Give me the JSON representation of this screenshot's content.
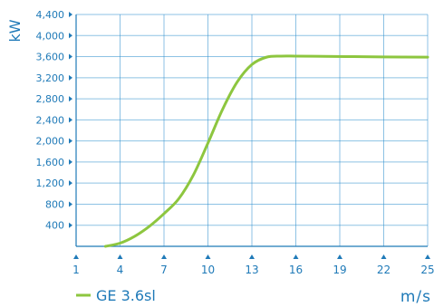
{
  "chart_data": {
    "type": "line",
    "xlabel": "m/s",
    "ylabel": "kW",
    "xlim": [
      1,
      25
    ],
    "ylim": [
      0,
      4400
    ],
    "x_ticks": [
      1,
      4,
      7,
      10,
      13,
      16,
      19,
      22,
      25
    ],
    "y_ticks": [
      400,
      800,
      1200,
      1600,
      2000,
      2400,
      2800,
      3200,
      3600,
      4000,
      4400
    ],
    "y_tick_labels": [
      "400",
      "800",
      "1,200",
      "1,600",
      "2,000",
      "2,400",
      "2,800",
      "3,200",
      "3,600",
      "4,000",
      "4,400"
    ],
    "grid": true,
    "legend_position": "bottom-left",
    "colors": {
      "series": "#8dc63f",
      "grid": "#2f8fce",
      "text": "#1f7ab8",
      "axis": "#1f7ab8"
    },
    "series": [
      {
        "name": "GE 3.6sl",
        "x": [
          3,
          4,
          5,
          6,
          7,
          8,
          9,
          10,
          11,
          12,
          13,
          14,
          15,
          16,
          18,
          20,
          22,
          25
        ],
        "values": [
          0,
          60,
          190,
          380,
          620,
          900,
          1350,
          1960,
          2600,
          3120,
          3450,
          3590,
          3610,
          3610,
          3605,
          3600,
          3595,
          3590
        ]
      }
    ]
  }
}
